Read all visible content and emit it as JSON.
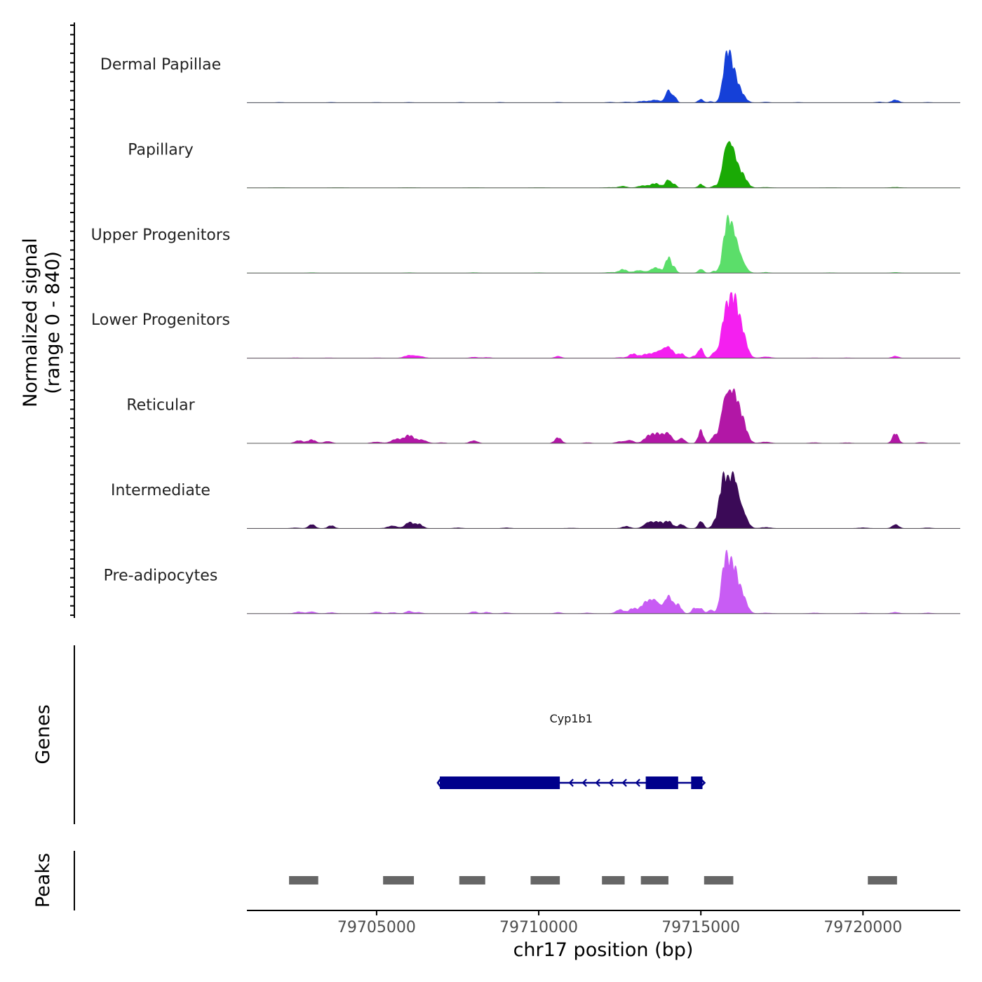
{
  "chart_data": {
    "type": "area",
    "title": "",
    "chromosome": "chr17",
    "xlabel": "chr17 position (bp)",
    "xlim": [
      79701000,
      79723000
    ],
    "x_ticks": [
      79705000,
      79710000,
      79715000,
      79720000
    ],
    "x_tick_labels": [
      "79705000",
      "79710000",
      "79715000",
      "79720000"
    ],
    "ylabel_line1": "Normalized signal",
    "ylabel_line2": "(range 0 - 840)",
    "ylim": [
      0,
      840
    ],
    "genes_label": "Genes",
    "peaks_label": "Peaks",
    "series": [
      {
        "name": "Dermal Papillae",
        "color": "#1540D8",
        "scale": 0.8,
        "peaks": [
          [
            79702000,
            5,
            100
          ],
          [
            79703600,
            5,
            100
          ],
          [
            79705000,
            4,
            120
          ],
          [
            79706000,
            5,
            100
          ],
          [
            79707600,
            5,
            100
          ],
          [
            79708800,
            5,
            100
          ],
          [
            79710600,
            6,
            100
          ],
          [
            79712200,
            8,
            100
          ],
          [
            79712700,
            10,
            120
          ],
          [
            79713200,
            20,
            150
          ],
          [
            79713600,
            40,
            150
          ],
          [
            79714000,
            200,
            90
          ],
          [
            79714200,
            80,
            60
          ],
          [
            79715000,
            50,
            80
          ],
          [
            79715300,
            20,
            70
          ],
          [
            79715800,
            660,
            120
          ],
          [
            79716000,
            300,
            120
          ],
          [
            79716200,
            150,
            150
          ],
          [
            79717000,
            10,
            100
          ],
          [
            79718000,
            5,
            100
          ],
          [
            79720500,
            10,
            100
          ],
          [
            79721000,
            40,
            110
          ],
          [
            79722000,
            5,
            100
          ]
        ]
      },
      {
        "name": "Papillary",
        "color": "#1AAA05",
        "scale": 0.8,
        "peaks": [
          [
            79702000,
            3,
            200
          ],
          [
            79703800,
            3,
            200
          ],
          [
            79706000,
            3,
            200
          ],
          [
            79708000,
            3,
            200
          ],
          [
            79710000,
            3,
            200
          ],
          [
            79712200,
            6,
            150
          ],
          [
            79712600,
            25,
            120
          ],
          [
            79713200,
            30,
            150
          ],
          [
            79713600,
            60,
            150
          ],
          [
            79714000,
            120,
            90
          ],
          [
            79714200,
            50,
            60
          ],
          [
            79715000,
            50,
            80
          ],
          [
            79715400,
            25,
            70
          ],
          [
            79715800,
            640,
            130
          ],
          [
            79716000,
            380,
            120
          ],
          [
            79716250,
            200,
            150
          ],
          [
            79717000,
            8,
            150
          ],
          [
            79719000,
            3,
            200
          ],
          [
            79721000,
            8,
            150
          ]
        ]
      },
      {
        "name": "Upper Progenitors",
        "color": "#5BDE6A",
        "scale": 0.8,
        "peaks": [
          [
            79703000,
            6,
            120
          ],
          [
            79706000,
            6,
            120
          ],
          [
            79708000,
            6,
            120
          ],
          [
            79710000,
            5,
            120
          ],
          [
            79712200,
            10,
            150
          ],
          [
            79712600,
            50,
            120
          ],
          [
            79713100,
            40,
            150
          ],
          [
            79713600,
            80,
            150
          ],
          [
            79714000,
            220,
            90
          ],
          [
            79714200,
            60,
            60
          ],
          [
            79715000,
            60,
            80
          ],
          [
            79715400,
            25,
            70
          ],
          [
            79715800,
            630,
            120
          ],
          [
            79716000,
            420,
            120
          ],
          [
            79716200,
            250,
            150
          ],
          [
            79717000,
            10,
            100
          ],
          [
            79719000,
            5,
            120
          ],
          [
            79721000,
            10,
            120
          ]
        ]
      },
      {
        "name": "Lower Progenitors",
        "color": "#F41FF0",
        "scale": 0.8,
        "peaks": [
          [
            79702500,
            5,
            150
          ],
          [
            79703500,
            5,
            150
          ],
          [
            79705000,
            5,
            150
          ],
          [
            79706000,
            40,
            150
          ],
          [
            79706300,
            30,
            150
          ],
          [
            79708000,
            15,
            120
          ],
          [
            79708400,
            10,
            120
          ],
          [
            79710600,
            30,
            100
          ],
          [
            79712500,
            10,
            120
          ],
          [
            79712900,
            60,
            120
          ],
          [
            79713300,
            50,
            150
          ],
          [
            79713700,
            100,
            180
          ],
          [
            79714000,
            150,
            150
          ],
          [
            79714400,
            60,
            100
          ],
          [
            79714800,
            30,
            80
          ],
          [
            79715000,
            150,
            80
          ],
          [
            79715400,
            80,
            80
          ],
          [
            79715750,
            600,
            130
          ],
          [
            79716000,
            700,
            130
          ],
          [
            79716250,
            400,
            150
          ],
          [
            79717000,
            20,
            150
          ],
          [
            79718500,
            5,
            150
          ],
          [
            79719500,
            5,
            150
          ],
          [
            79721000,
            30,
            100
          ]
        ]
      },
      {
        "name": "Reticular",
        "color": "#B217A6",
        "scale": 0.8,
        "peaks": [
          [
            79702600,
            40,
            120
          ],
          [
            79703000,
            50,
            120
          ],
          [
            79703500,
            30,
            120
          ],
          [
            79705000,
            20,
            150
          ],
          [
            79705600,
            60,
            150
          ],
          [
            79706000,
            110,
            150
          ],
          [
            79706400,
            50,
            150
          ],
          [
            79707000,
            10,
            120
          ],
          [
            79708000,
            40,
            120
          ],
          [
            79710600,
            80,
            100
          ],
          [
            79711500,
            10,
            120
          ],
          [
            79712500,
            25,
            120
          ],
          [
            79712800,
            50,
            120
          ],
          [
            79713400,
            100,
            150
          ],
          [
            79713700,
            120,
            150
          ],
          [
            79714000,
            140,
            120
          ],
          [
            79714400,
            80,
            100
          ],
          [
            79715000,
            180,
            80
          ],
          [
            79715400,
            100,
            80
          ],
          [
            79715750,
            700,
            130
          ],
          [
            79716000,
            620,
            130
          ],
          [
            79716250,
            350,
            150
          ],
          [
            79717000,
            20,
            150
          ],
          [
            79718500,
            10,
            150
          ],
          [
            79719500,
            8,
            150
          ],
          [
            79721000,
            140,
            90
          ],
          [
            79721800,
            15,
            120
          ]
        ]
      },
      {
        "name": "Intermediate",
        "color": "#3B0A57",
        "scale": 0.8,
        "peaks": [
          [
            79702500,
            10,
            120
          ],
          [
            79703000,
            60,
            100
          ],
          [
            79703600,
            40,
            100
          ],
          [
            79705500,
            40,
            150
          ],
          [
            79706000,
            90,
            120
          ],
          [
            79706300,
            60,
            120
          ],
          [
            79707500,
            10,
            120
          ],
          [
            79709000,
            10,
            120
          ],
          [
            79711000,
            5,
            150
          ],
          [
            79712700,
            30,
            120
          ],
          [
            79713400,
            100,
            150
          ],
          [
            79713700,
            80,
            120
          ],
          [
            79714000,
            100,
            120
          ],
          [
            79714400,
            60,
            100
          ],
          [
            79715000,
            110,
            80
          ],
          [
            79715400,
            50,
            80
          ],
          [
            79715700,
            700,
            130
          ],
          [
            79716000,
            710,
            130
          ],
          [
            79716250,
            300,
            150
          ],
          [
            79717000,
            15,
            150
          ],
          [
            79720000,
            10,
            150
          ],
          [
            79721000,
            60,
            100
          ],
          [
            79722000,
            10,
            120
          ]
        ]
      },
      {
        "name": "Pre-adipocytes",
        "color": "#C85CF4",
        "scale": 0.8,
        "peaks": [
          [
            79702600,
            25,
            120
          ],
          [
            79703000,
            30,
            120
          ],
          [
            79703600,
            15,
            120
          ],
          [
            79705000,
            25,
            120
          ],
          [
            79705500,
            15,
            120
          ],
          [
            79706000,
            40,
            100
          ],
          [
            79706300,
            20,
            100
          ],
          [
            79708000,
            30,
            100
          ],
          [
            79708400,
            20,
            100
          ],
          [
            79709000,
            15,
            120
          ],
          [
            79710600,
            20,
            100
          ],
          [
            79711500,
            10,
            120
          ],
          [
            79712500,
            60,
            120
          ],
          [
            79712900,
            70,
            120
          ],
          [
            79713300,
            150,
            150
          ],
          [
            79713600,
            200,
            150
          ],
          [
            79714000,
            260,
            120
          ],
          [
            79714300,
            120,
            100
          ],
          [
            79714800,
            80,
            80
          ],
          [
            79715000,
            80,
            80
          ],
          [
            79715300,
            60,
            80
          ],
          [
            79715750,
            750,
            120
          ],
          [
            79716000,
            550,
            120
          ],
          [
            79716250,
            300,
            150
          ],
          [
            79717000,
            10,
            150
          ],
          [
            79718500,
            10,
            150
          ],
          [
            79720000,
            10,
            150
          ],
          [
            79721000,
            20,
            120
          ],
          [
            79722000,
            10,
            120
          ]
        ]
      }
    ],
    "genes": [
      {
        "name": "Cyp1b1",
        "strand": "-",
        "start": 79706950,
        "end": 79715050,
        "exons": [
          [
            79706950,
            79710650
          ],
          [
            79713300,
            79714300
          ],
          [
            79714700,
            79715050
          ]
        ]
      }
    ],
    "peak_regions": [
      [
        79702300,
        79703200
      ],
      [
        79705200,
        79706150
      ],
      [
        79707550,
        79708350
      ],
      [
        79709750,
        79710650
      ],
      [
        79711950,
        79712650
      ],
      [
        79713150,
        79714000
      ],
      [
        79715100,
        79716000
      ],
      [
        79720150,
        79721050
      ]
    ]
  }
}
